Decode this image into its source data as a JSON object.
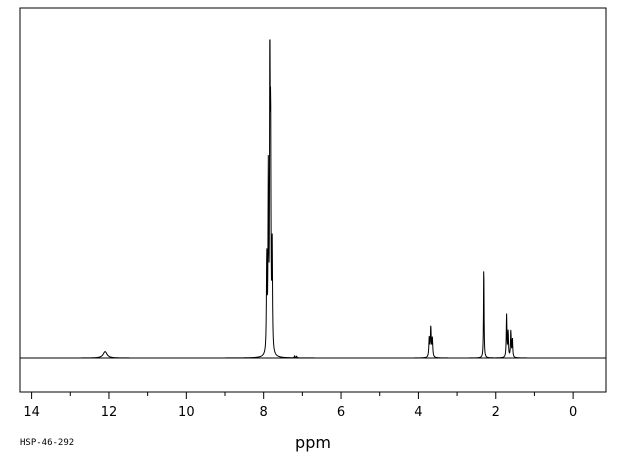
{
  "chart_data": {
    "type": "line",
    "title": "",
    "sample_id": "HSP-46-292",
    "xlabel": "ppm",
    "ylabel": "",
    "xlim": [
      14.3,
      -0.85
    ],
    "x_reversed": true,
    "ylim": [
      0,
      1.0
    ],
    "grid": false,
    "legend": "none",
    "line_color": "#000000",
    "x_ticks": [
      14,
      12,
      10,
      8,
      6,
      4,
      2,
      0
    ],
    "x_tick_labels": [
      "14",
      "12",
      "10",
      "8",
      "6",
      "4",
      "2",
      "0"
    ],
    "peaks": [
      {
        "ppm": 12.1,
        "height": 0.02,
        "width": 0.06
      },
      {
        "ppm": 7.92,
        "height": 0.3,
        "width": 0.01
      },
      {
        "ppm": 7.88,
        "height": 0.56,
        "width": 0.01
      },
      {
        "ppm": 7.84,
        "height": 1.0,
        "width": 0.008
      },
      {
        "ppm": 7.82,
        "height": 0.7,
        "width": 0.01
      },
      {
        "ppm": 7.78,
        "height": 0.33,
        "width": 0.01
      },
      {
        "ppm": 7.2,
        "height": 0.006,
        "width": 0.01
      },
      {
        "ppm": 7.15,
        "height": 0.005,
        "width": 0.01
      },
      {
        "ppm": 3.72,
        "height": 0.06,
        "width": 0.012
      },
      {
        "ppm": 3.68,
        "height": 0.095,
        "width": 0.012
      },
      {
        "ppm": 3.64,
        "height": 0.06,
        "width": 0.012
      },
      {
        "ppm": 2.31,
        "height": 0.3,
        "width": 0.008
      },
      {
        "ppm": 1.72,
        "height": 0.135,
        "width": 0.01
      },
      {
        "ppm": 1.68,
        "height": 0.08,
        "width": 0.01
      },
      {
        "ppm": 1.61,
        "height": 0.085,
        "width": 0.01
      },
      {
        "ppm": 1.57,
        "height": 0.06,
        "width": 0.01
      }
    ]
  }
}
